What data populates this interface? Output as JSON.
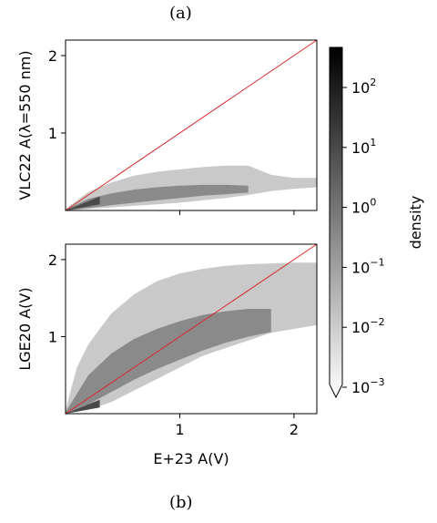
{
  "caption_top": "(a)",
  "caption_bottom": "(b)",
  "colorbar": {
    "label": "density",
    "ticks": [
      {
        "base": "10",
        "exp": "2"
      },
      {
        "base": "10",
        "exp": "1"
      },
      {
        "base": "10",
        "exp": "0"
      },
      {
        "base": "10",
        "exp": "−1"
      },
      {
        "base": "10",
        "exp": "−2"
      },
      {
        "base": "10",
        "exp": "−3"
      }
    ],
    "colors": [
      "#ffffff",
      "#000000"
    ]
  },
  "chart_data": [
    {
      "type": "heatmap",
      "ylabel": "VLC22 A(λ=550 nm)",
      "xlabel": "",
      "xlim": [
        0,
        2.2
      ],
      "ylim": [
        0,
        2.2
      ],
      "xticks": [
        "1",
        "2"
      ],
      "yticks": [
        "1",
        "2"
      ],
      "reference_line": {
        "from": [
          0,
          0
        ],
        "to": [
          2.2,
          2.2
        ],
        "color": "#d62728"
      },
      "upper": [
        [
          0,
          0.02
        ],
        [
          0.2,
          0.24
        ],
        [
          0.4,
          0.36
        ],
        [
          0.6,
          0.45
        ],
        [
          0.8,
          0.5
        ],
        [
          1.0,
          0.53
        ],
        [
          1.2,
          0.56
        ],
        [
          1.4,
          0.58
        ],
        [
          1.6,
          0.58
        ],
        [
          1.8,
          0.46
        ],
        [
          2.0,
          0.42
        ],
        [
          2.2,
          0.42
        ]
      ],
      "lower": [
        [
          0,
          0
        ],
        [
          0.2,
          0.02
        ],
        [
          0.4,
          0.04
        ],
        [
          0.6,
          0.06
        ],
        [
          0.8,
          0.08
        ],
        [
          1.0,
          0.1
        ],
        [
          1.2,
          0.13
        ],
        [
          1.4,
          0.16
        ],
        [
          1.6,
          0.2
        ],
        [
          1.8,
          0.25
        ],
        [
          2.0,
          0.28
        ],
        [
          2.2,
          0.3
        ]
      ],
      "core_upper": [
        [
          0,
          0.01
        ],
        [
          0.2,
          0.15
        ],
        [
          0.4,
          0.22
        ],
        [
          0.6,
          0.27
        ],
        [
          0.8,
          0.3
        ],
        [
          1.0,
          0.32
        ],
        [
          1.2,
          0.33
        ],
        [
          1.4,
          0.33
        ],
        [
          1.6,
          0.32
        ]
      ],
      "core_lower": [
        [
          0,
          0
        ],
        [
          0.2,
          0.03
        ],
        [
          0.4,
          0.07
        ],
        [
          0.6,
          0.1
        ],
        [
          0.8,
          0.13
        ],
        [
          1.0,
          0.16
        ],
        [
          1.2,
          0.19
        ],
        [
          1.4,
          0.21
        ],
        [
          1.6,
          0.23
        ]
      ]
    },
    {
      "type": "heatmap",
      "ylabel": "LGE20 A(V)",
      "xlabel": "E+23 A(V)",
      "xlim": [
        0,
        2.2
      ],
      "ylim": [
        0,
        2.2
      ],
      "xticks": [
        "1",
        "2"
      ],
      "yticks": [
        "1",
        "2"
      ],
      "reference_line": {
        "from": [
          0,
          0
        ],
        "to": [
          2.2,
          2.2
        ],
        "color": "#d62728"
      },
      "upper": [
        [
          0,
          0.05
        ],
        [
          0.1,
          0.6
        ],
        [
          0.2,
          0.9
        ],
        [
          0.4,
          1.3
        ],
        [
          0.6,
          1.55
        ],
        [
          0.8,
          1.72
        ],
        [
          1.0,
          1.82
        ],
        [
          1.2,
          1.88
        ],
        [
          1.4,
          1.92
        ],
        [
          1.6,
          1.94
        ],
        [
          1.8,
          1.95
        ],
        [
          2.0,
          1.96
        ],
        [
          2.2,
          1.96
        ]
      ],
      "lower": [
        [
          0,
          0
        ],
        [
          0.2,
          0.05
        ],
        [
          0.4,
          0.15
        ],
        [
          0.6,
          0.3
        ],
        [
          0.8,
          0.45
        ],
        [
          1.0,
          0.6
        ],
        [
          1.2,
          0.75
        ],
        [
          1.4,
          0.85
        ],
        [
          1.6,
          0.95
        ],
        [
          1.8,
          1.05
        ],
        [
          2.0,
          1.1
        ],
        [
          2.2,
          1.15
        ]
      ],
      "core_upper": [
        [
          0,
          0.02
        ],
        [
          0.2,
          0.5
        ],
        [
          0.4,
          0.78
        ],
        [
          0.6,
          0.97
        ],
        [
          0.8,
          1.1
        ],
        [
          1.0,
          1.2
        ],
        [
          1.2,
          1.28
        ],
        [
          1.4,
          1.33
        ],
        [
          1.6,
          1.36
        ],
        [
          1.8,
          1.36
        ]
      ],
      "core_lower": [
        [
          0,
          0
        ],
        [
          0.2,
          0.12
        ],
        [
          0.4,
          0.28
        ],
        [
          0.6,
          0.44
        ],
        [
          0.8,
          0.58
        ],
        [
          1.0,
          0.7
        ],
        [
          1.2,
          0.82
        ],
        [
          1.4,
          0.92
        ],
        [
          1.6,
          1.0
        ],
        [
          1.8,
          1.06
        ]
      ]
    }
  ]
}
